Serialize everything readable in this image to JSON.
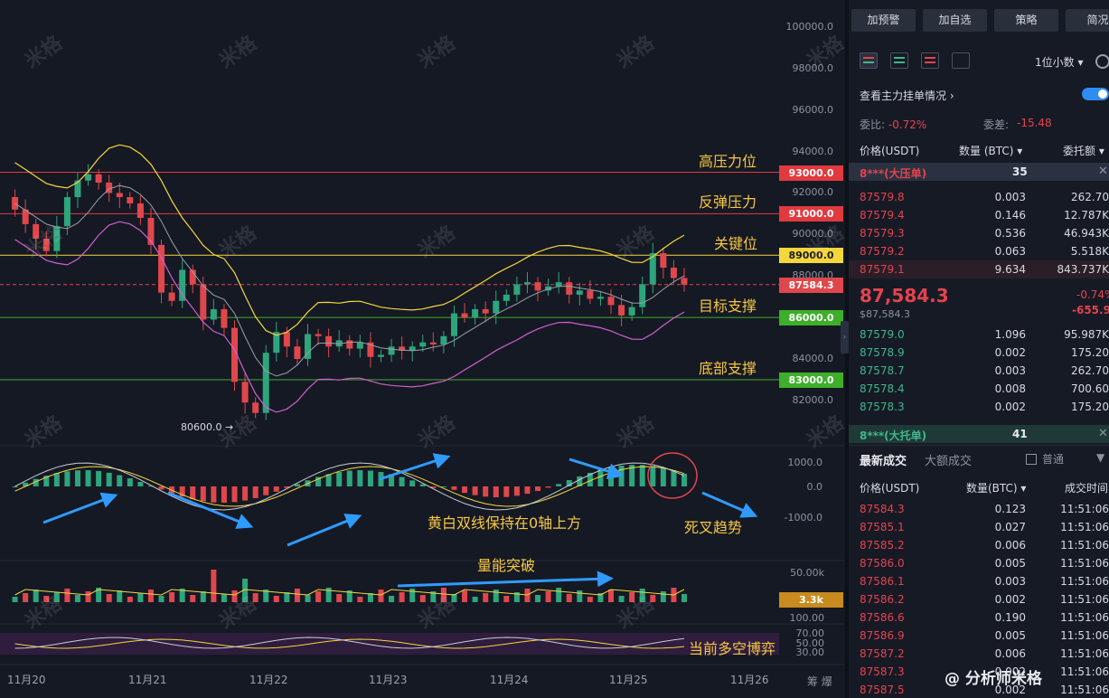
{
  "chart_data": {
    "type": "candlestick",
    "x_ticks": [
      "11月20",
      "11月21",
      "11月22",
      "11月23",
      "11月24",
      "11月25",
      "11月26"
    ],
    "price_axis": [
      "100000.0",
      "98000.0",
      "96000.0",
      "94000.0",
      "92000.0",
      "90000.0",
      "88000.0",
      "84000.0",
      "82000.0"
    ],
    "price_range": [
      80000,
      100800
    ],
    "levels": [
      {
        "value": 93000,
        "tag": "93000.0",
        "label": "高压力位",
        "color": "#e03a3e"
      },
      {
        "value": 91000,
        "tag": "91000.0",
        "label": "反弹压力",
        "color": "#e03a3e"
      },
      {
        "value": 89000,
        "tag": "89000.0",
        "label": "关键位",
        "color": "#f5d63d"
      },
      {
        "value": 86000,
        "tag": "86000.0",
        "label": "目标支撑",
        "color": "#3fae2a"
      },
      {
        "value": 83000,
        "tag": "83000.0",
        "label": "底部支撑",
        "color": "#3fae2a"
      }
    ],
    "last_price": {
      "value": 87584.3,
      "tag": "87584.3"
    },
    "low_marker": {
      "value": 80600,
      "label": "80600.0 →"
    },
    "macd_axis": [
      "1000.0",
      "0.0",
      "-1000.0"
    ],
    "volume_axis": [
      "50.00k"
    ],
    "volume_tag": "3.3k",
    "rsi_axis": [
      "100.00",
      "70.00",
      "50.00",
      "30.00"
    ],
    "price_path": [
      91800,
      91200,
      90500,
      89800,
      89200,
      90400,
      91800,
      92600,
      92900,
      92500,
      92000,
      91800,
      91500,
      90800,
      89500,
      87200,
      86800,
      88300,
      87600,
      85900,
      86400,
      85500,
      82900,
      81900,
      81400,
      84300,
      85300,
      84600,
      84000,
      85200,
      85100,
      84600,
      84900,
      84500,
      84800,
      84100,
      84200,
      84600,
      84400,
      84600,
      84800,
      84700,
      85100,
      86200,
      86000,
      86400,
      86200,
      86800,
      87100,
      87600,
      87700,
      87300,
      87500,
      87700,
      87100,
      87300,
      86900,
      87000,
      86600,
      86100,
      86500,
      87600,
      89100,
      88400,
      87900,
      87584
    ],
    "annotations": [
      "黄白双线保持在0轴上方",
      "死叉趋势",
      "量能突破",
      "当前多空博弈"
    ]
  },
  "panel": {
    "buttons": [
      "加预警",
      "加自选",
      "策略",
      "简况"
    ],
    "decimals": "1位小数",
    "watch_label": "查看主力挂单情况",
    "ratio_label": "委比:",
    "ratio_value": "-0.72%",
    "diff_label": "委差:",
    "diff_value": "-15.48",
    "col_price": "价格(USDT)",
    "col_qty": "数量 (BTC)",
    "col_total": "委托额",
    "big_ask_label": "8***(大压单)",
    "big_ask_qty": "35",
    "asks": [
      {
        "p": "87579.8",
        "q": "0.003",
        "t": "262.70"
      },
      {
        "p": "87579.4",
        "q": "0.146",
        "t": "12.787K"
      },
      {
        "p": "87579.3",
        "q": "0.536",
        "t": "46.943K"
      },
      {
        "p": "87579.2",
        "q": "0.063",
        "t": "5.518K"
      },
      {
        "p": "87579.1",
        "q": "9.634",
        "t": "843.737K"
      }
    ],
    "last_price": "87,584.3",
    "last_price_sub": "$87,584.3",
    "change_pct": "-0.74%",
    "change_abs": "-655.9",
    "bids": [
      {
        "p": "87579.0",
        "q": "1.096",
        "t": "95.987K"
      },
      {
        "p": "87578.9",
        "q": "0.002",
        "t": "175.20"
      },
      {
        "p": "87578.7",
        "q": "0.003",
        "t": "262.70"
      },
      {
        "p": "87578.4",
        "q": "0.008",
        "t": "700.60"
      },
      {
        "p": "87578.3",
        "q": "0.002",
        "t": "175.20"
      }
    ],
    "big_bid_label": "8***(大托单)",
    "big_bid_qty": "41",
    "trades_tab": "最新成交",
    "large_tab": "大额成交",
    "normal_label": "普通",
    "col_tprice": "价格(USDT)",
    "col_tqty": "数量(BTC)",
    "col_ttime": "成交时间",
    "trades": [
      {
        "p": "87584.3",
        "q": "0.123",
        "t": "11:51:06"
      },
      {
        "p": "87585.1",
        "q": "0.027",
        "t": "11:51:06"
      },
      {
        "p": "87585.2",
        "q": "0.006",
        "t": "11:51:06"
      },
      {
        "p": "87586.0",
        "q": "0.005",
        "t": "11:51:06"
      },
      {
        "p": "87586.1",
        "q": "0.003",
        "t": "11:51:06"
      },
      {
        "p": "87586.2",
        "q": "0.002",
        "t": "11:51:06"
      },
      {
        "p": "87586.6",
        "q": "0.190",
        "t": "11:51:06"
      },
      {
        "p": "87586.9",
        "q": "0.005",
        "t": "11:51:06"
      },
      {
        "p": "87587.2",
        "q": "0.006",
        "t": "11:51:06"
      },
      {
        "p": "87587.3",
        "q": "0.002",
        "t": "11:51:06"
      },
      {
        "p": "87587.5",
        "q": "0.002",
        "t": "11:51:06"
      }
    ]
  },
  "footer": {
    "author": "@ 分析师米格",
    "corner": "筹 爆"
  },
  "watermark": "米格"
}
